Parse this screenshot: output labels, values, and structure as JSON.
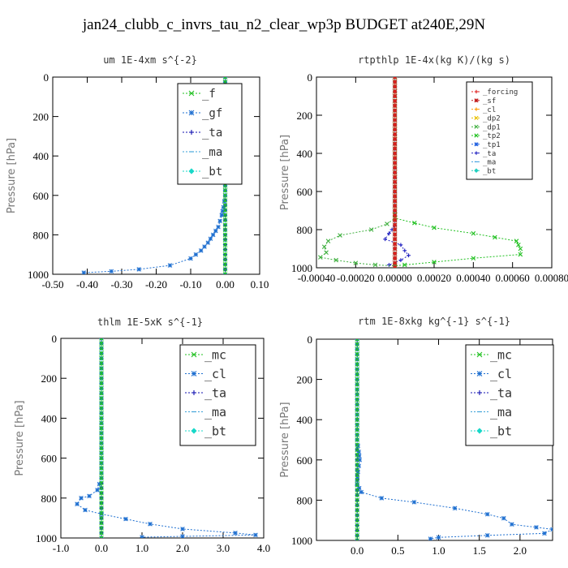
{
  "title": "jan24_clubb_c_invrs_tau_n2_clear_wp3p  BUDGET at240E,29N",
  "chart_data": [
    {
      "type": "line",
      "title": "um   1E-4xm s^{-2}",
      "ylabel": "Pressure [hPa]",
      "xlim": [
        -0.5,
        0.1
      ],
      "ylim": [
        1000,
        0
      ],
      "xticks": [
        "-0.50",
        "-0.40",
        "-0.30",
        "-0.20",
        "-0.10",
        "0.00",
        "0.10"
      ],
      "xtick_values": [
        -0.5,
        -0.4,
        -0.3,
        -0.2,
        -0.1,
        0.0,
        0.1
      ],
      "yticks": [
        "0",
        "200",
        "400",
        "600",
        "800",
        "1000"
      ],
      "ytick_values": [
        0,
        200,
        400,
        600,
        800,
        1000
      ],
      "legend_position": "top-right",
      "series": [
        {
          "name": "_f",
          "color": "#22c022",
          "marker": "x",
          "points": [
            [
              0.0,
              0
            ],
            [
              0.0,
              100
            ],
            [
              0.0,
              200
            ],
            [
              0.0,
              300
            ],
            [
              0.0,
              400
            ],
            [
              0.0,
              500
            ],
            [
              0.0,
              600
            ],
            [
              0.0,
              700
            ],
            [
              0.0,
              800
            ],
            [
              0.0,
              900
            ],
            [
              0.0,
              1000
            ]
          ]
        },
        {
          "name": "_gf",
          "color": "#1e6fd0",
          "marker": "star",
          "points": [
            [
              0.0,
              0
            ],
            [
              0.0,
              300
            ],
            [
              0.0,
              500
            ],
            [
              0.0,
              600
            ],
            [
              -0.005,
              660
            ],
            [
              -0.01,
              700
            ],
            [
              -0.02,
              760
            ],
            [
              -0.035,
              800
            ],
            [
              -0.05,
              840
            ],
            [
              -0.07,
              880
            ],
            [
              -0.1,
              920
            ],
            [
              -0.16,
              955
            ],
            [
              -0.25,
              975
            ],
            [
              -0.33,
              985
            ],
            [
              -0.41,
              992
            ]
          ]
        },
        {
          "name": "_ta",
          "color": "#1010b0",
          "marker": "plus",
          "points": [
            [
              0.0,
              0
            ],
            [
              0.0,
              1000
            ]
          ]
        },
        {
          "name": "_ma",
          "color": "#3aa0d8",
          "marker": "dash",
          "points": [
            [
              0.0,
              0
            ],
            [
              0.0,
              1000
            ]
          ]
        },
        {
          "name": "_bt",
          "color": "#18d8c8",
          "marker": "diamond",
          "points": [
            [
              0.0,
              0
            ],
            [
              0.0,
              1000
            ]
          ]
        }
      ]
    },
    {
      "type": "line",
      "title": "rtpthlp   1E-4x(kg K)/(kg s)",
      "ylabel": "Pressure [hPa]",
      "xlim": [
        -0.0004,
        0.0008
      ],
      "ylim": [
        1000,
        0
      ],
      "xticks": [
        "-0.00040",
        "-0.00020",
        "0.00000",
        "0.00020",
        "0.00040",
        "0.00060",
        "0.00080"
      ],
      "xtick_values": [
        -0.0004,
        -0.0002,
        0.0,
        0.0002,
        0.0004,
        0.0006,
        0.0008
      ],
      "yticks": [
        "0",
        "200",
        "400",
        "600",
        "800",
        "1000"
      ],
      "ytick_values": [
        0,
        200,
        400,
        600,
        800,
        1000
      ],
      "legend_position": "top-right",
      "series": [
        {
          "name": "_forcing",
          "color": "#e02020",
          "marker": "plus",
          "points": [
            [
              0.0,
              0
            ],
            [
              0.0,
              1000
            ]
          ]
        },
        {
          "name": "_sf",
          "color": "#c01818",
          "marker": "star",
          "points": [
            [
              0.0,
              0
            ],
            [
              0.0,
              1000
            ]
          ]
        },
        {
          "name": "_cl",
          "color": "#ff9900",
          "marker": "plus",
          "points": [
            [
              0.0,
              0
            ],
            [
              0.0,
              1000
            ]
          ]
        },
        {
          "name": "_dp2",
          "color": "#e8c000",
          "marker": "x",
          "points": [
            [
              0.0,
              0
            ],
            [
              0.0,
              1000
            ]
          ]
        },
        {
          "name": "_dp1",
          "color": "#40b040",
          "marker": "x",
          "points": [
            [
              0.0,
              0
            ],
            [
              0.0,
              500
            ],
            [
              0.0,
              700
            ],
            [
              0.0,
              740
            ],
            [
              -4e-05,
              770
            ],
            [
              -0.00012,
              800
            ],
            [
              -0.00028,
              830
            ],
            [
              -0.00034,
              860
            ],
            [
              -0.00036,
              890
            ],
            [
              -0.00035,
              920
            ],
            [
              -0.00038,
              945
            ],
            [
              -0.0003,
              960
            ],
            [
              -0.0002,
              975
            ],
            [
              -0.0001,
              985
            ],
            [
              0.0,
              990
            ]
          ]
        },
        {
          "name": "_tp2",
          "color": "#20c020",
          "marker": "x",
          "points": [
            [
              0.0,
              0
            ],
            [
              0.0,
              500
            ],
            [
              0.0,
              700
            ],
            [
              0.0,
              740
            ],
            [
              0.0002,
              790
            ],
            [
              0.0004,
              820
            ],
            [
              0.00062,
              860
            ],
            [
              0.00064,
              900
            ],
            [
              0.00064,
              930
            ],
            [
              0.0004,
              950
            ],
            [
              0.0002,
              970
            ],
            [
              5e-05,
              985
            ],
            [
              0.0,
              990
            ]
          ]
        },
        {
          "name": "_tp1",
          "color": "#2060e0",
          "marker": "star",
          "points": [
            [
              0.0,
              0
            ],
            [
              0.0,
              1000
            ]
          ]
        },
        {
          "name": "_ta",
          "color": "#2020c0",
          "marker": "plus",
          "points": [
            [
              0.0,
              0
            ],
            [
              0.0,
              780
            ],
            [
              -3e-05,
              820
            ],
            [
              -5e-05,
              850
            ],
            [
              3e-05,
              880
            ],
            [
              5e-05,
              910
            ],
            [
              7e-05,
              935
            ],
            [
              3e-05,
              960
            ],
            [
              -3e-05,
              985
            ],
            [
              0.0,
              990
            ]
          ]
        },
        {
          "name": "_ma",
          "color": "#40a0e0",
          "marker": "dash",
          "points": [
            [
              0.0,
              0
            ],
            [
              0.0,
              1000
            ]
          ]
        },
        {
          "name": "_bt",
          "color": "#20d0c0",
          "marker": "diamond",
          "points": [
            [
              0.0,
              0
            ],
            [
              0.0,
              1000
            ]
          ]
        }
      ]
    },
    {
      "type": "line",
      "title": "thlm   1E-5xK s^{-1}",
      "ylabel": "Pressure [hPa]",
      "xlim": [
        -1.0,
        4.0
      ],
      "ylim": [
        1000,
        0
      ],
      "xticks": [
        "-1.0",
        "0.0",
        "1.0",
        "2.0",
        "3.0",
        "4.0"
      ],
      "xtick_values": [
        -1.0,
        0.0,
        1.0,
        2.0,
        3.0,
        4.0
      ],
      "yticks": [
        "0",
        "200",
        "400",
        "600",
        "800",
        "1000"
      ],
      "ytick_values": [
        0,
        200,
        400,
        600,
        800,
        1000
      ],
      "legend_position": "top-right",
      "series": [
        {
          "name": "_mc",
          "color": "#22c022",
          "marker": "x",
          "points": [
            [
              0.0,
              0
            ],
            [
              0.0,
              100
            ],
            [
              0.0,
              200
            ],
            [
              0.0,
              300
            ],
            [
              0.0,
              400
            ],
            [
              0.0,
              500
            ],
            [
              0.0,
              600
            ],
            [
              0.0,
              700
            ],
            [
              0.0,
              800
            ],
            [
              0.0,
              900
            ],
            [
              0.0,
              1000
            ]
          ]
        },
        {
          "name": "_cl",
          "color": "#1e6fd0",
          "marker": "star",
          "points": [
            [
              0.0,
              0
            ],
            [
              0.0,
              500
            ],
            [
              0.0,
              700
            ],
            [
              -0.1,
              760
            ],
            [
              -0.3,
              790
            ],
            [
              -0.5,
              800
            ],
            [
              -0.6,
              830
            ],
            [
              -0.4,
              860
            ],
            [
              0.0,
              880
            ],
            [
              0.6,
              905
            ],
            [
              1.2,
              930
            ],
            [
              2.0,
              955
            ],
            [
              3.3,
              975
            ],
            [
              3.8,
              985
            ],
            [
              2.0,
              992
            ],
            [
              1.0,
              996
            ]
          ]
        },
        {
          "name": "_ta",
          "color": "#1010b0",
          "marker": "plus",
          "points": [
            [
              0.0,
              0
            ],
            [
              0.0,
              1000
            ]
          ]
        },
        {
          "name": "_ma",
          "color": "#3aa0d8",
          "marker": "dash",
          "points": [
            [
              0.0,
              0
            ],
            [
              0.0,
              1000
            ]
          ]
        },
        {
          "name": "_bt",
          "color": "#18d8c8",
          "marker": "diamond",
          "points": [
            [
              0.0,
              0
            ],
            [
              0.0,
              1000
            ]
          ]
        }
      ]
    },
    {
      "type": "line",
      "title": "rtm   1E-8xkg kg^{-1} s^{-1}",
      "ylabel": "Pressure [hPa]",
      "xlim": [
        -0.5,
        2.4
      ],
      "ylim": [
        1000,
        0
      ],
      "xticks": [
        "0.0",
        "0.5",
        "1.0",
        "1.5",
        "2.0"
      ],
      "xtick_values": [
        0.0,
        0.5,
        1.0,
        1.5,
        2.0
      ],
      "yticks": [
        "0",
        "200",
        "400",
        "600",
        "800",
        "1000"
      ],
      "ytick_values": [
        0,
        200,
        400,
        600,
        800,
        1000
      ],
      "legend_position": "top-right",
      "series": [
        {
          "name": "_mc",
          "color": "#22c022",
          "marker": "x",
          "points": [
            [
              0.0,
              0
            ],
            [
              0.0,
              100
            ],
            [
              0.0,
              200
            ],
            [
              0.0,
              300
            ],
            [
              0.0,
              400
            ],
            [
              0.0,
              500
            ],
            [
              0.0,
              600
            ],
            [
              0.0,
              700
            ],
            [
              0.0,
              800
            ],
            [
              0.0,
              900
            ],
            [
              0.0,
              1000
            ]
          ]
        },
        {
          "name": "_cl",
          "color": "#1e6fd0",
          "marker": "star",
          "points": [
            [
              0.0,
              0
            ],
            [
              0.0,
              500
            ],
            [
              0.02,
              560
            ],
            [
              0.03,
              600
            ],
            [
              0.01,
              660
            ],
            [
              0.0,
              720
            ],
            [
              0.05,
              760
            ],
            [
              0.3,
              790
            ],
            [
              0.7,
              810
            ],
            [
              1.2,
              840
            ],
            [
              1.6,
              870
            ],
            [
              1.8,
              890
            ],
            [
              1.9,
              920
            ],
            [
              2.2,
              935
            ],
            [
              2.4,
              945
            ],
            [
              2.3,
              965
            ],
            [
              1.6,
              975
            ],
            [
              1.0,
              985
            ],
            [
              0.9,
              992
            ]
          ]
        },
        {
          "name": "_ta",
          "color": "#1010b0",
          "marker": "plus",
          "points": [
            [
              0.0,
              0
            ],
            [
              0.0,
              1000
            ]
          ]
        },
        {
          "name": "_ma",
          "color": "#3aa0d8",
          "marker": "dash",
          "points": [
            [
              0.0,
              0
            ],
            [
              0.0,
              1000
            ]
          ]
        },
        {
          "name": "_bt",
          "color": "#18d8c8",
          "marker": "diamond",
          "points": [
            [
              0.0,
              0
            ],
            [
              0.0,
              1000
            ]
          ]
        }
      ]
    }
  ]
}
